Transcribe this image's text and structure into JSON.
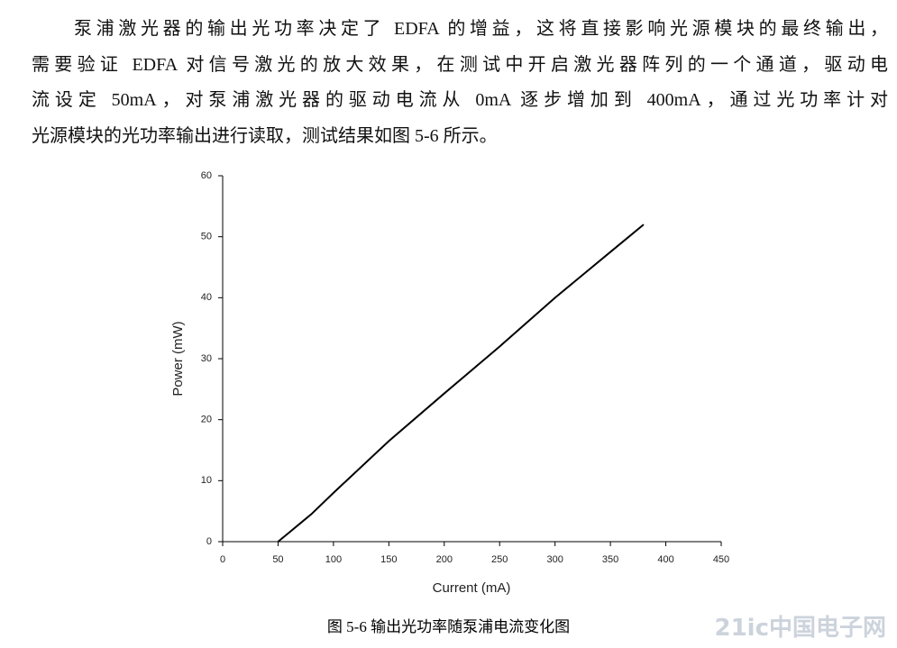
{
  "paragraph": {
    "lines": [
      "泵浦激光器的输出光功率决定了 EDFA 的增益，这将直接影响光源模块的最终输出，",
      "需要验证 EDFA 对信号激光的放大效果，在测试中开启激光器阵列的一个通道，驱动电",
      "流设定 50mA，对泵浦激光器的驱动电流从 0mA 逐步增加到 400mA，通过光功率计对",
      "光源模块的光功率输出进行读取，测试结果如图 5-6 所示。"
    ]
  },
  "chart_data": {
    "type": "line",
    "x_label": "Current (mA)",
    "y_label": "Power (mW)",
    "x": [
      50,
      60,
      70,
      80,
      100,
      150,
      200,
      250,
      300,
      350,
      380
    ],
    "series": [
      {
        "color": "#000000",
        "values": [
          0,
          1.5,
          3,
          4.5,
          8,
          16.5,
          24.3,
          32,
          40,
          47.5,
          52
        ]
      }
    ],
    "xlim": [
      0,
      450
    ],
    "xticks": [
      0,
      50,
      100,
      150,
      200,
      250,
      300,
      350,
      400,
      450
    ],
    "ylim": [
      0,
      60
    ],
    "yticks": [
      0,
      10,
      20,
      30,
      40,
      50,
      60
    ]
  },
  "caption": "图 5-6 输出光功率随泵浦电流变化图",
  "watermark": "21ic中国电子网"
}
